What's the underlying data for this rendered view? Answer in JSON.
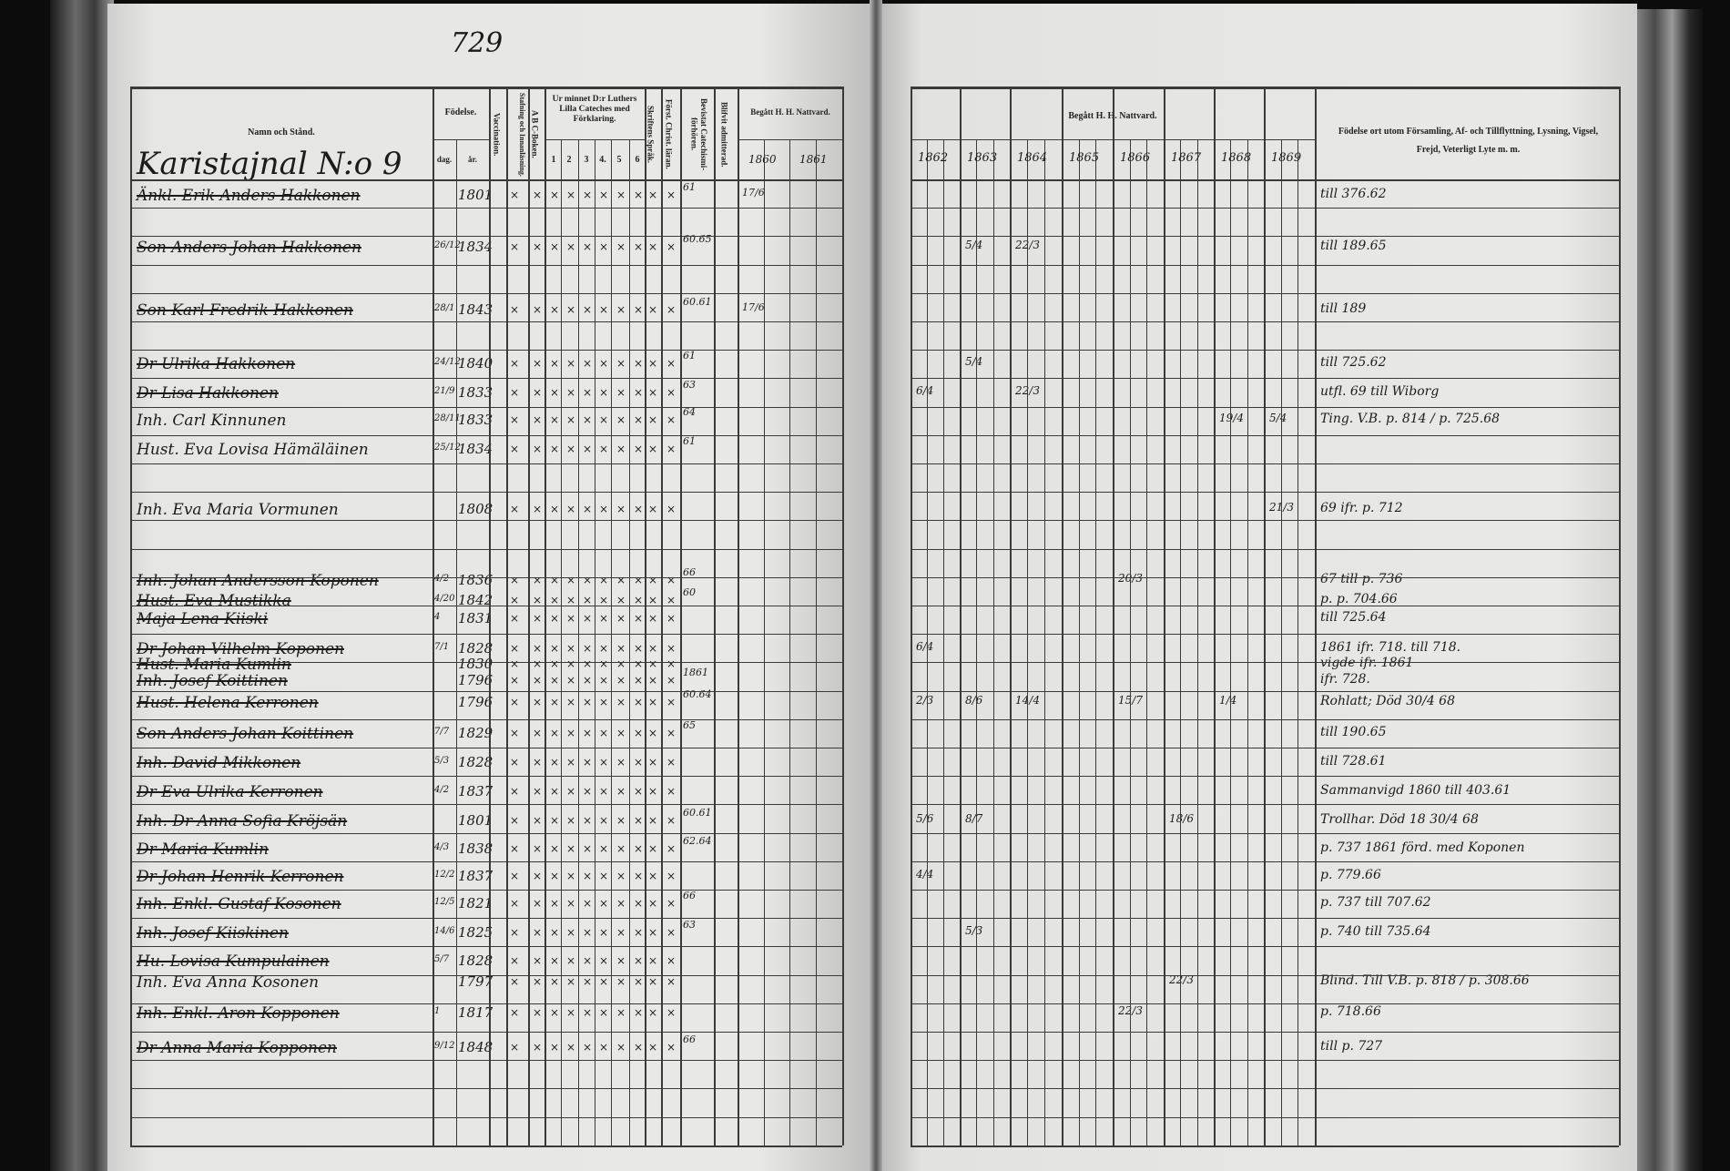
{
  "page_number": "729",
  "section_title": "Karistajnal N:o 9",
  "left_headers": {
    "name": "Namn och Stånd.",
    "birth": "Födelse.",
    "day": "dag.",
    "year": "år.",
    "vaccination": "Vaccination.",
    "reading": "Stafning och Innanläsning.",
    "abc": "A B C-Boken.",
    "catechism": "Ur minnet D:r Luthers Lilla Cateches med Förklaring.",
    "catechism_parts": [
      "1",
      "2",
      "3",
      "4.",
      "5",
      "6"
    ],
    "scripture": "Skriftens Språk.",
    "christian": "Först. Christ. läran.",
    "catechism_exams": "Bevistat Catechismi-förhören.",
    "admitted": "Blifvit admitterad.",
    "communion": "Begått H. H. Nattvard.",
    "communion_years": [
      "1860",
      "1861"
    ]
  },
  "right_headers": {
    "communion": "Begått H. H. Nattvard.",
    "communion_years": [
      "1862",
      "1863",
      "1864",
      "1865",
      "1866",
      "1867",
      "1868",
      "1869"
    ],
    "remarks": "Födelse ort utom Församling, Af- och Tillflyttning, Lysning, Vigsel, Frejd, Veterligt Lyte m. m."
  },
  "entries": [
    {
      "name": "Änkl. Erik Anders Hakkonen",
      "day": "",
      "year": "1801",
      "exams": "61",
      "communion": "17/6",
      "remark": "till 376.62",
      "struck": true
    },
    {
      "name": "Son Anders Johan Hakkonen",
      "day": "26/12",
      "year": "1834",
      "exams": "60.65",
      "communion": "",
      "remark": "till 189.65",
      "struck": true
    },
    {
      "name": "Son Karl Fredrik Hakkonen",
      "day": "28/1",
      "year": "1843",
      "exams": "60.61",
      "communion": "17/6",
      "remark": "till 189",
      "struck": true
    },
    {
      "name": "Dr Ulrika Hakkonen",
      "day": "24/12",
      "year": "1840",
      "exams": "61",
      "communion": "",
      "remark": "till 725.62",
      "struck": true
    },
    {
      "name": "Dr Lisa Hakkonen",
      "day": "21/9",
      "year": "1833",
      "exams": "63",
      "communion": "",
      "remark": "utfl. 69 till Wiborg",
      "struck": true
    },
    {
      "name": "Inh. Carl Kinnunen",
      "day": "28/11",
      "year": "1833",
      "exams": "64",
      "communion": "",
      "remark": "Ting. V.B. p. 814 / p. 725.68",
      "struck": false
    },
    {
      "name": "Hust. Eva Lovisa Hämäläinen",
      "day": "25/12",
      "year": "1834",
      "exams": "61",
      "communion": "",
      "remark": "",
      "struck": false
    },
    {
      "name": "Inh. Eva Maria Vormunen",
      "day": "",
      "year": "1808",
      "exams": "",
      "communion": "",
      "remark": "69 ifr. p. 712",
      "struck": false
    },
    {
      "name": "Inh. Johan Andersson Koponen",
      "day": "4/2",
      "year": "1836",
      "exams": "66",
      "communion": "",
      "remark": "67 till p. 736",
      "struck": true
    },
    {
      "name": "Hust. Eva Mustikka",
      "day": "4/20",
      "year": "1842",
      "exams": "60",
      "communion": "",
      "remark": "p. p. 704.66",
      "struck": true
    },
    {
      "name": "Maja Lena Kiiski",
      "day": "4",
      "year": "1831",
      "exams": "",
      "communion": "",
      "remark": "till 725.64",
      "struck": true
    },
    {
      "name": "Dr Johan Vilhelm Koponen",
      "day": "7/1",
      "year": "1828",
      "exams": "",
      "communion": "",
      "remark": "1861 ifr. 718. till 718.",
      "struck": true
    },
    {
      "name": "Hust. Maria Kumlin",
      "day": "",
      "year": "1830",
      "exams": "",
      "communion": "",
      "remark": "vigde ifr. 1861",
      "struck": true
    },
    {
      "name": "Inh. Josef Koittinen",
      "day": "",
      "year": "1796",
      "exams": "1861",
      "communion": "",
      "remark": "ifr. 728.",
      "struck": true
    },
    {
      "name": "Hust. Helena Kerronen",
      "day": "",
      "year": "1796",
      "exams": "60.64",
      "communion": "",
      "remark": "Rohlatt; Död 30/4 68",
      "struck": true
    },
    {
      "name": "Son Anders Johan Koittinen",
      "day": "7/7",
      "year": "1829",
      "exams": "65",
      "communion": "",
      "remark": "till 190.65",
      "struck": true
    },
    {
      "name": "Inh. David Mikkonen",
      "day": "5/3",
      "year": "1828",
      "exams": "",
      "communion": "",
      "remark": "till 728.61",
      "struck": true
    },
    {
      "name": "Dr Eva Ulrika Kerronen",
      "day": "4/2",
      "year": "1837",
      "exams": "",
      "communion": "",
      "remark": "Sammanvigd 1860 till 403.61",
      "struck": true
    },
    {
      "name": "Inh. Dr Anna Sofia Kröjsän",
      "day": "",
      "year": "1801",
      "exams": "60.61",
      "communion": "",
      "remark": "Trollhar. Död 18 30/4 68",
      "struck": true
    },
    {
      "name": "Dr Maria Kumlin",
      "day": "4/3",
      "year": "1838",
      "exams": "62.64",
      "communion": "",
      "remark": "p. 737 1861 förd. med Koponen",
      "struck": true
    },
    {
      "name": "Dr Johan Henrik Kerronen",
      "day": "12/2",
      "year": "1837",
      "exams": "",
      "communion": "",
      "remark": "p. 779.66",
      "struck": true
    },
    {
      "name": "Inh. Enkl. Gustaf Kosonen",
      "day": "12/5",
      "year": "1821",
      "exams": "66",
      "communion": "",
      "remark": "p. 737 till 707.62",
      "struck": true
    },
    {
      "name": "Inh. Josef Kiiskinen",
      "day": "14/6",
      "year": "1825",
      "exams": "63",
      "communion": "",
      "remark": "p. 740 till 735.64",
      "struck": true
    },
    {
      "name": "Hu. Lovisa Kumpulainen",
      "day": "5/7",
      "year": "1828",
      "exams": "",
      "communion": "",
      "remark": "",
      "struck": true
    },
    {
      "name": "Inh. Eva Anna Kosonen",
      "day": "",
      "year": "1797",
      "exams": "",
      "communion": "",
      "remark": "Blind. Till V.B. p. 818 / p. 308.66",
      "struck": false
    },
    {
      "name": "Inh. Enkl. Aron Kopponen",
      "day": "1",
      "year": "1817",
      "exams": "",
      "communion": "",
      "remark": "p. 718.66",
      "struck": true
    },
    {
      "name": "Dr Anna Maria Kopponen",
      "day": "9/12",
      "year": "1848",
      "exams": "66",
      "communion": "",
      "remark": "till p. 727",
      "struck": true
    }
  ],
  "communion_marks": [
    {
      "entry": 1,
      "year": "1863",
      "value": "5/4"
    },
    {
      "entry": 1,
      "year": "1864",
      "value": "22/3"
    },
    {
      "entry": 3,
      "year": "1863",
      "value": "5/4"
    },
    {
      "entry": 4,
      "year": "1862",
      "value": "6/4"
    },
    {
      "entry": 4,
      "year": "1864",
      "value": "22/3"
    },
    {
      "entry": 5,
      "year": "1868",
      "value": "19/4"
    },
    {
      "entry": 5,
      "year": "1869",
      "value": "5/4"
    },
    {
      "entry": 7,
      "year": "1869",
      "value": "21/3"
    },
    {
      "entry": 8,
      "year": "1866",
      "value": "20/3"
    },
    {
      "entry": 11,
      "year": "1862",
      "value": "6/4"
    },
    {
      "entry": 14,
      "year": "1862",
      "value": "2/3"
    },
    {
      "entry": 14,
      "year": "1863",
      "value": "8/6"
    },
    {
      "entry": 14,
      "year": "1864",
      "value": "14/4"
    },
    {
      "entry": 14,
      "year": "1866",
      "value": "15/7"
    },
    {
      "entry": 14,
      "year": "1868",
      "value": "1/4"
    },
    {
      "entry": 18,
      "year": "1862",
      "value": "5/6"
    },
    {
      "entry": 18,
      "year": "1863",
      "value": "8/7"
    },
    {
      "entry": 18,
      "year": "1867",
      "value": "18/6"
    },
    {
      "entry": 20,
      "year": "1862",
      "value": "4/4"
    },
    {
      "entry": 22,
      "year": "1863",
      "value": "5/3"
    },
    {
      "entry": 24,
      "year": "1867",
      "value": "22/3"
    },
    {
      "entry": 25,
      "year": "1866",
      "value": "22/3"
    }
  ]
}
